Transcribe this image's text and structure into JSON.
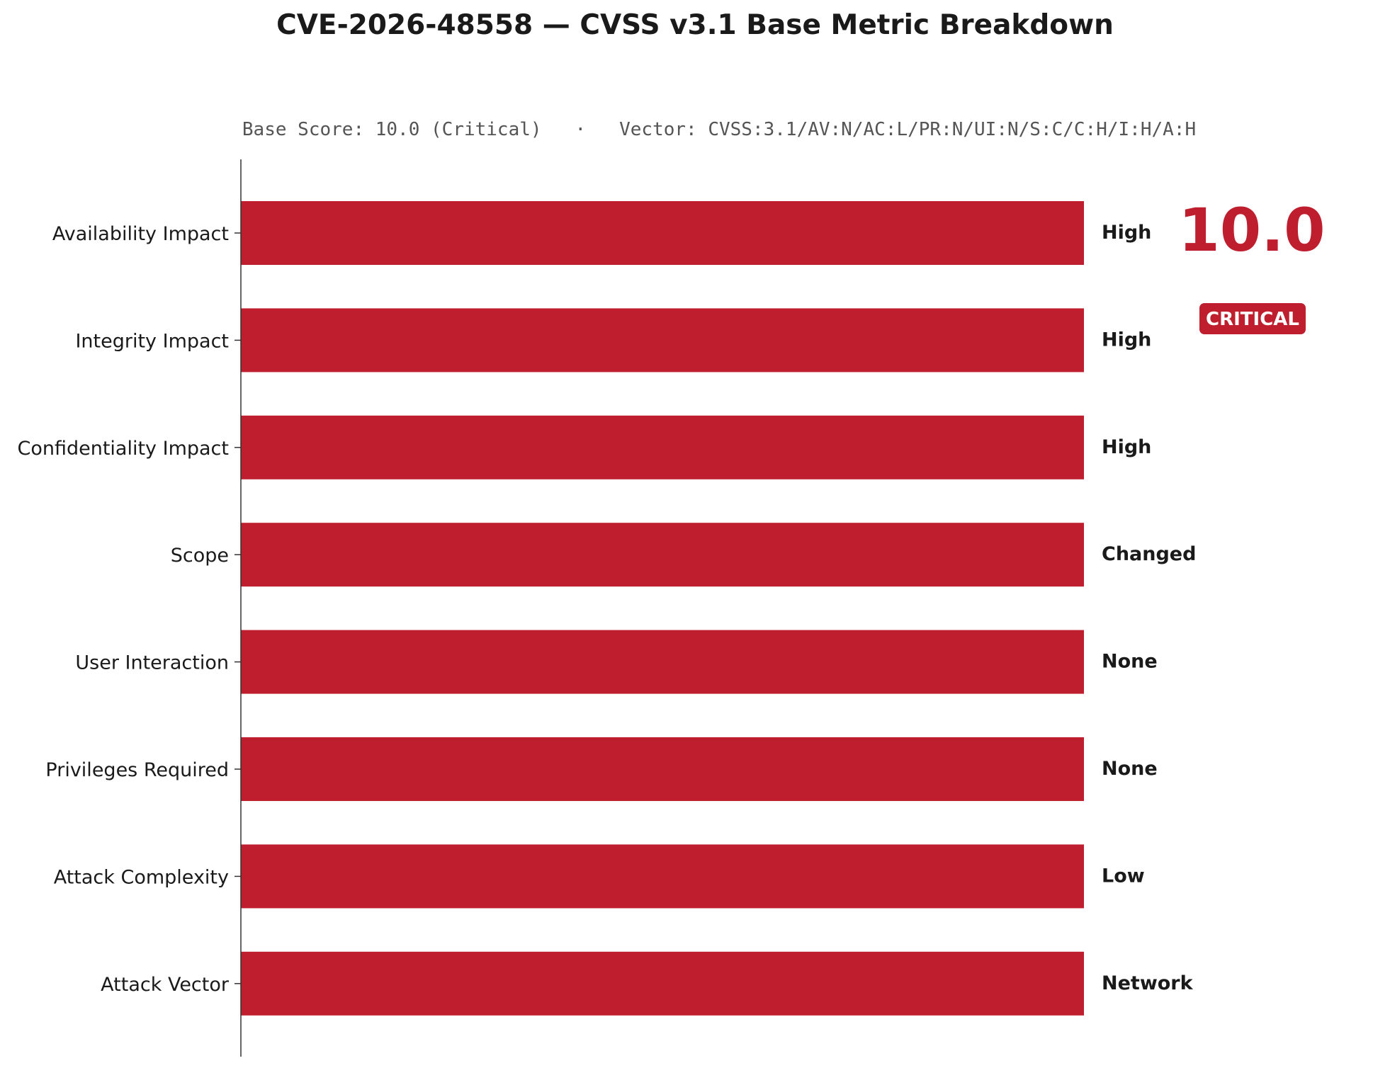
{
  "chart_data": {
    "type": "bar",
    "orientation": "horizontal",
    "title": "CVE-2026-48558 — CVSS v3.1 Base Metric Breakdown",
    "subtitle": "Base Score: 10.0 (Critical)   ·   Vector: CVSS:3.1/AV:N/AC:L/PR:N/UI:N/S:C/C:H/I:H/A:H",
    "categories": [
      "Availability Impact",
      "Integrity Impact",
      "Confidentiality Impact",
      "Scope",
      "User Interaction",
      "Privileges Required",
      "Attack Complexity",
      "Attack Vector"
    ],
    "values": [
      1,
      1,
      1,
      1,
      1,
      1,
      1,
      1
    ],
    "value_labels": [
      "High",
      "High",
      "High",
      "Changed",
      "None",
      "None",
      "Low",
      "Network"
    ],
    "xlim": [
      0,
      1
    ],
    "grid": false,
    "legend": "none",
    "score": {
      "value": "10.0",
      "severity": "CRITICAL"
    },
    "colors": {
      "bar": "#be1e2d",
      "score": "#be1e2d",
      "badge": "#be1e2d",
      "text": "#1a1a1a",
      "axis": "#333333"
    }
  }
}
